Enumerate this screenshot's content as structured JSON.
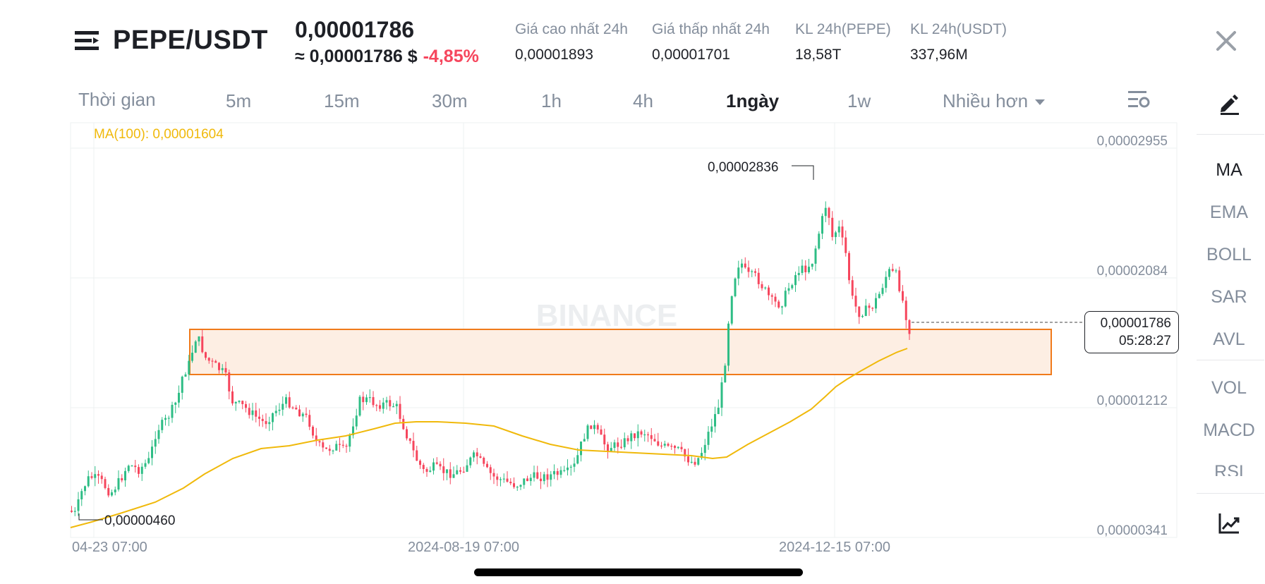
{
  "header": {
    "pair": "PEPE/USDT",
    "last_price": "0,00001786",
    "price_usd": "≈ 0,00001786 $",
    "change": "-4,85%",
    "stats": [
      {
        "label": "Giá cao nhất 24h",
        "value": "0,00001893"
      },
      {
        "label": "Giá thấp nhất 24h",
        "value": "0,00001701"
      },
      {
        "label": "KL 24h(PEPE)",
        "value": "18,58T"
      },
      {
        "label": "KL 24h(USDT)",
        "value": "337,96M"
      }
    ]
  },
  "timeframes": {
    "label": "Thời gian",
    "items": [
      "5m",
      "15m",
      "30m",
      "1h",
      "4h",
      "1ngày",
      "1w"
    ],
    "active": "1ngày",
    "more": "Nhiều hơn"
  },
  "side_panel": {
    "items": [
      "MA",
      "EMA",
      "BOLL",
      "SAR",
      "AVL",
      "VOL",
      "MACD",
      "RSI"
    ],
    "active": "MA"
  },
  "colors": {
    "up": "#2ebd85",
    "down": "#f6465d",
    "ma_line": "#f0b90b",
    "zone_border": "#f07a1a",
    "zone_fill": "#fdeee3"
  },
  "chart_data": {
    "type": "candlestick",
    "indicator": "MA(100): 0,00001604",
    "y_ticks": [
      "0,00002955",
      "0,00002084",
      "0,00001212",
      "0,00000341"
    ],
    "x_ticks": [
      "04-23 07:00",
      "2024-08-19 07:00",
      "2024-12-15 07:00"
    ],
    "high_label": "0,00002836",
    "low_label": "0,00000460",
    "current_price": "0,00001786",
    "countdown": "05:28:27",
    "zone": {
      "top": 1.75e-05,
      "bottom": 1.45e-05
    },
    "watermark": "BINANCE"
  }
}
